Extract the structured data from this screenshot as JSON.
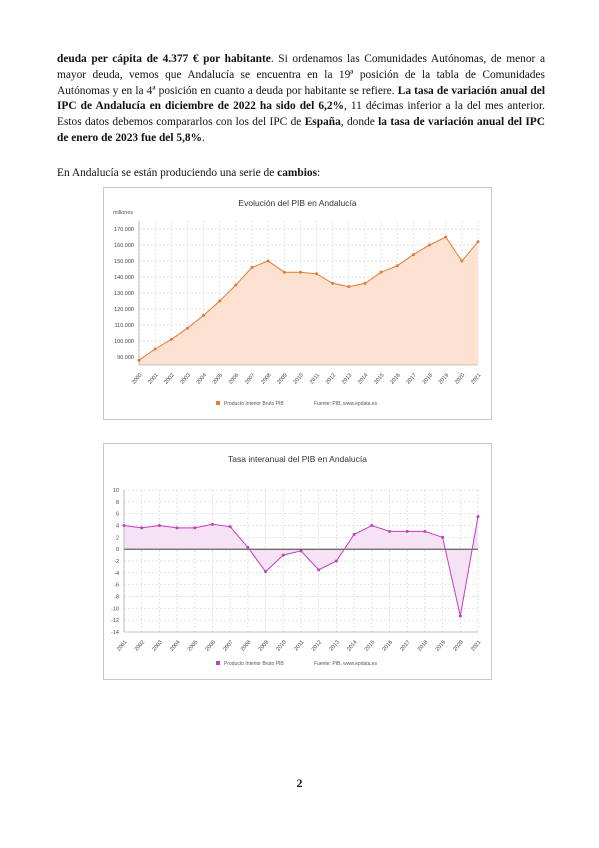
{
  "paragraph1": [
    {
      "t": "deuda per cápita de 4.377 € por habitante",
      "b": true
    },
    {
      "t": ". Si ordenamos las Comunidades Autónomas, de menor a mayor deuda, vemos que Andalucía se encuentra en la 19ª posición de la tabla de Comunidades Autónomas y en la 4ª posición en cuanto a deuda por habitante se refiere. ",
      "b": false
    },
    {
      "t": "La tasa de variación anual del IPC de Andalucía en diciembre de 2022 ha sido del 6,2%",
      "b": true
    },
    {
      "t": ", 11 décimas inferior a la del mes anterior. Estos datos debemos compararlos con los del IPC de ",
      "b": false
    },
    {
      "t": "España",
      "b": true
    },
    {
      "t": ", donde ",
      "b": false
    },
    {
      "t": "la tasa de variación anual del IPC de enero de 2023 fue del 5,8%",
      "b": true
    },
    {
      "t": ".",
      "b": false
    }
  ],
  "paragraph2": [
    {
      "t": "En Andalucía se están produciendo una serie de ",
      "b": false
    },
    {
      "t": "cambios",
      "b": true
    },
    {
      "t": ":",
      "b": false
    }
  ],
  "page_number": "2",
  "chart_data": [
    {
      "type": "area",
      "title": "Evolución del PIB en Andalucía",
      "ylabel": "millones",
      "ylim": [
        85000,
        175000
      ],
      "yticks": [
        90000,
        100000,
        110000,
        120000,
        130000,
        140000,
        150000,
        160000,
        170000
      ],
      "ytick_labels": [
        "90.000",
        "100.000",
        "110.000",
        "120.000",
        "130.000",
        "140.000",
        "150.000",
        "160.000",
        "170.000"
      ],
      "categories": [
        "2000",
        "2001",
        "2002",
        "2003",
        "2004",
        "2005",
        "2006",
        "2007",
        "2008",
        "2009",
        "2010",
        "2011",
        "2012",
        "2013",
        "2014",
        "2015",
        "2016",
        "2017",
        "2018",
        "2019",
        "2020",
        "2021"
      ],
      "series": [
        {
          "name": "Producto Interior Bruto PIB",
          "values": [
            88000,
            95000,
            101000,
            108000,
            116000,
            125000,
            135000,
            146000,
            150000,
            143000,
            143000,
            142000,
            136000,
            134000,
            136000,
            143000,
            147000,
            154000,
            160000,
            165000,
            150000,
            162000
          ]
        }
      ],
      "source": "Fuente: PIB, www.epdata.es",
      "line_color": "#e07b39",
      "fill_color": "#fde2d2",
      "grid": true,
      "legend": "bottom"
    },
    {
      "type": "area",
      "title": "Tasa interanual del PIB en Andalucía",
      "ylabel": "%",
      "ylim": [
        -14,
        10
      ],
      "yticks": [
        -14,
        -12,
        -10,
        -8,
        -6,
        -4,
        -2,
        0,
        2,
        4,
        6,
        8,
        10
      ],
      "ytick_labels": [
        "-14",
        "-12",
        "-10",
        "-8",
        "-6",
        "-4",
        "-2",
        "0",
        "2",
        "4",
        "6",
        "8",
        "10"
      ],
      "categories": [
        "2001",
        "2002",
        "2003",
        "2004",
        "2005",
        "2006",
        "2007",
        "2008",
        "2009",
        "2010",
        "2011",
        "2012",
        "2013",
        "2014",
        "2015",
        "2016",
        "2017",
        "2018",
        "2019",
        "2020",
        "2021"
      ],
      "series": [
        {
          "name": "Producto Interior Bruto PIB",
          "values": [
            4.0,
            3.6,
            4.0,
            3.6,
            3.6,
            4.2,
            3.8,
            0.3,
            -3.8,
            -1.0,
            -0.3,
            -3.5,
            -2.0,
            2.5,
            4.0,
            3.0,
            3.0,
            3.0,
            2.0,
            -11.3,
            5.5
          ]
        }
      ],
      "source": "Fuente: PIB, www.epdata.es",
      "line_color": "#c13fbf",
      "fill_color": "#f6e2f5",
      "grid": true,
      "legend": "bottom"
    }
  ]
}
